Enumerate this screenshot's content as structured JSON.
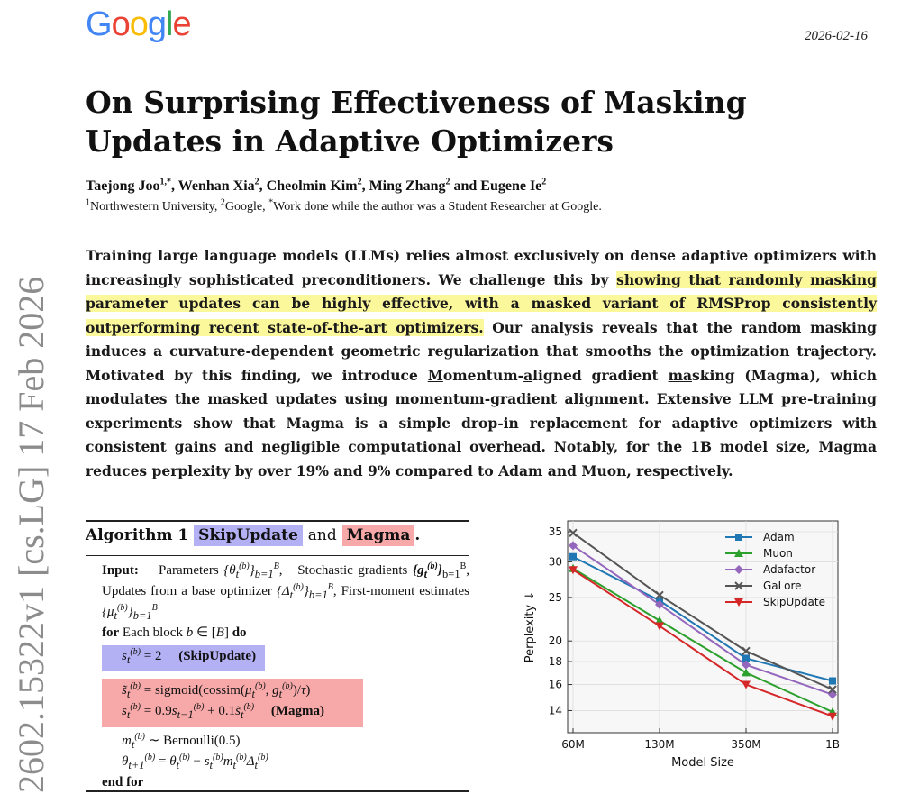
{
  "stamp": "2602.15322v1  [cs.LG]  17 Feb 2026",
  "logo": {
    "letters": [
      "G",
      "o",
      "o",
      "g",
      "l",
      "e"
    ],
    "colors": [
      "#4285F4",
      "#EA4335",
      "#FBBC05",
      "#4285F4",
      "#34A853",
      "#EA4335"
    ]
  },
  "date": "2026-02-16",
  "title": "On Surprising Effectiveness of Masking Updates in Adaptive Optimizers",
  "authors": [
    {
      "name": "Taejong Joo",
      "sup": "1,*"
    },
    {
      "name": "Wenhan Xia",
      "sup": "2"
    },
    {
      "name": "Cheolmin Kim",
      "sup": "2"
    },
    {
      "name": "Ming Zhang",
      "sup": "2"
    },
    {
      "name": "Eugene Ie",
      "sup": "2"
    }
  ],
  "affiliations": {
    "a1": "Northwestern University,",
    "a2": "Google,",
    "note": "Work done while the author was a Student Researcher at Google."
  },
  "abstract": {
    "part1": "Training large language models (LLMs) relies almost exclusively on dense adaptive optimizers with increasingly sophisticated preconditioners.  We challenge this by ",
    "highlight": "showing that randomly masking parameter updates can be highly effective, with a masked variant of RMSProp consistently outperforming recent state-of-the-art optimizers.",
    "part2": " Our analysis reveals that the random masking induces a curvature-dependent geometric regularization that smooths the optimization trajectory. Motivated by this finding, we introduce ",
    "magma_name": "Momentum-aligned gradient masking",
    "part3": " (Magma), which modulates the masked updates using momentum-gradient alignment. Extensive LLM pre-training experiments show that Magma is a simple drop-in replacement for adaptive optimizers with consistent gains and negligible computational overhead. Notably, for the 1B model size, Magma reduces perplexity by over 19% and 9% compared to Adam and Muon, respectively."
  },
  "algorithm": {
    "label": "Algorithm 1",
    "skip": "SkipUpdate",
    "and": "and",
    "magma": "Magma",
    "period": ".",
    "input_label": "Input:",
    "input_text_1": "Parameters",
    "input_text_2": "Stochastic gradients",
    "input_text_3": "Updates from a base optimizer",
    "input_text_4": "First-moment estimates",
    "for_kw": "for",
    "for_text": "Each block",
    "do_kw": "do",
    "skip_line_tag": "(SkipUpdate)",
    "magma_line_tag": "(Magma)",
    "bernoulli": "Bernoulli(0.5)",
    "end_for": "end for"
  },
  "chart_data": {
    "type": "line",
    "x": [
      "60M",
      "130M",
      "350M",
      "1B"
    ],
    "xlabel": "Model Size",
    "ylabel": "Perplexity ↓",
    "yscale": "log",
    "ylim": [
      12.5,
      37
    ],
    "yticks": [
      14,
      16,
      18,
      20,
      25,
      30,
      35
    ],
    "grid": true,
    "legend": "top-right",
    "series": [
      {
        "name": "Adam",
        "color": "#1f77b4",
        "marker": "square",
        "values": [
          30.8,
          24.6,
          18.3,
          16.3
        ]
      },
      {
        "name": "Muon",
        "color": "#2ca02c",
        "marker": "triangle-up",
        "values": [
          29.0,
          22.2,
          17.0,
          13.9
        ]
      },
      {
        "name": "Adafactor",
        "color": "#9467bd",
        "marker": "diamond",
        "values": [
          32.6,
          24.1,
          17.7,
          15.2
        ]
      },
      {
        "name": "GaLore",
        "color": "#555555",
        "marker": "x",
        "values": [
          34.8,
          25.3,
          19.0,
          15.6
        ]
      },
      {
        "name": "SkipUpdate",
        "color": "#d62728",
        "marker": "triangle-down",
        "values": [
          28.8,
          21.6,
          16.0,
          13.6
        ]
      }
    ]
  }
}
